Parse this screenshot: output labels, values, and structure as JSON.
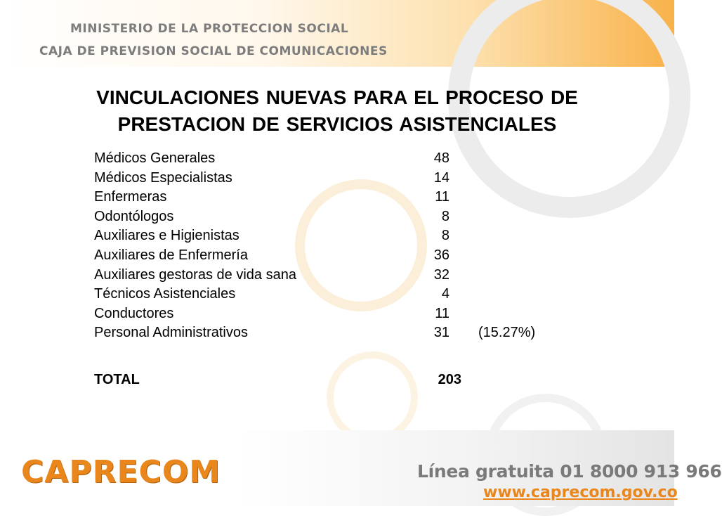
{
  "header": {
    "line1": "MINISTERIO DE LA PROTECCION SOCIAL",
    "line2": "CAJA DE PREVISION SOCIAL DE COMUNICACIONES"
  },
  "title": {
    "line1": "VINCULACIONES NUEVAS PARA EL PROCESO DE",
    "line2": "PRESTACION DE SERVICIOS ASISTENCIALES"
  },
  "rows": [
    {
      "label": "Médicos Generales",
      "value": "48",
      "note": ""
    },
    {
      "label": "Médicos Especialistas",
      "value": "14",
      "note": ""
    },
    {
      "label": "Enfermeras",
      "value": "11",
      "note": ""
    },
    {
      "label": "Odontólogos",
      "value": "8",
      "note": ""
    },
    {
      "label": "Auxiliares e Higienistas",
      "value": "8",
      "note": ""
    },
    {
      "label": "Auxiliares de Enfermería",
      "value": "36",
      "note": ""
    },
    {
      "label": "Auxiliares gestoras de vida sana",
      "value": "32",
      "note": ""
    },
    {
      "label": "Técnicos Asistenciales",
      "value": "4",
      "note": ""
    },
    {
      "label": "Conductores",
      "value": "11",
      "note": ""
    },
    {
      "label": "Personal Administrativos",
      "value": "31",
      "note": "(15.27%)"
    }
  ],
  "total": {
    "label": "TOTAL",
    "value": "203"
  },
  "footer": {
    "logo_text": "CAPRECOM",
    "hotline": "Línea gratuita 01 8000 913 966",
    "website": "www.caprecom.gov.co"
  },
  "colors": {
    "brand_orange": "#e9861c",
    "text_grey": "#7a7a7a"
  }
}
